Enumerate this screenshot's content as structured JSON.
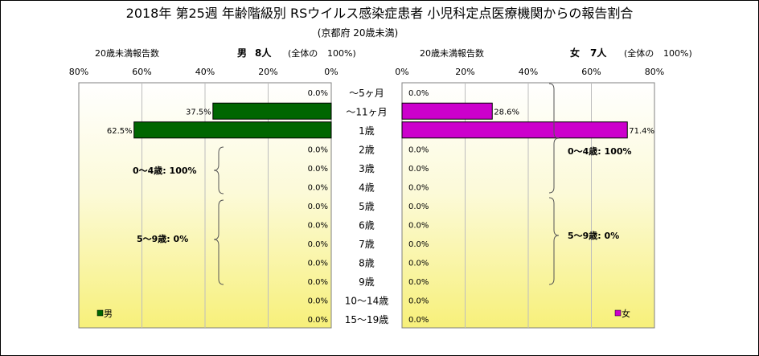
{
  "chart_data": {
    "type": "bar",
    "title": "2018年 第25週 年齢階級別 RSウイルス感染症患者 小児科定点医療機関からの報告割合",
    "subtitle": "(京都府 20歳未満)",
    "categories": [
      "～5ヶ月",
      "～11ヶ月",
      "1歳",
      "2歳",
      "3歳",
      "4歳",
      "5歳",
      "6歳",
      "7歳",
      "8歳",
      "9歳",
      "10～14歳",
      "15～19歳"
    ],
    "xlim": [
      0,
      80
    ],
    "ticks": [
      "80%",
      "60%",
      "40%",
      "20%",
      "0%"
    ],
    "ticks_right": [
      "0%",
      "20%",
      "40%",
      "60%",
      "80%"
    ],
    "grid": true,
    "series": [
      {
        "name": "男",
        "side": "left",
        "color": "#006600",
        "header_left": "20歳未満報告数",
        "header_label": "男",
        "header_count": "8人",
        "header_total": "(全体の",
        "header_total_pct": "100%)",
        "values": [
          0.0,
          37.5,
          62.5,
          0.0,
          0.0,
          0.0,
          0.0,
          0.0,
          0.0,
          0.0,
          0.0,
          0.0,
          0.0
        ],
        "labels": [
          "0.0%",
          "37.5%",
          "62.5%",
          "0.0%",
          "0.0%",
          "0.0%",
          "0.0%",
          "0.0%",
          "0.0%",
          "0.0%",
          "0.0%",
          "0.0%",
          "0.0%"
        ],
        "groups": [
          "0～4歳: 100%",
          "5～9歳: 0%"
        ]
      },
      {
        "name": "女",
        "side": "right",
        "color": "#cc00cc",
        "header_left": "20歳未満報告数",
        "header_label": "女",
        "header_count": "7人",
        "header_total": "(全体の",
        "header_total_pct": "100%)",
        "values": [
          0.0,
          28.6,
          71.4,
          0.0,
          0.0,
          0.0,
          0.0,
          0.0,
          0.0,
          0.0,
          0.0,
          0.0,
          0.0
        ],
        "labels": [
          "0.0%",
          "28.6%",
          "71.4%",
          "0.0%",
          "0.0%",
          "0.0%",
          "0.0%",
          "0.0%",
          "0.0%",
          "0.0%",
          "0.0%",
          "0.0%",
          "0.0%"
        ],
        "groups": [
          "0～4歳: 100%",
          "5～9歳: 0%"
        ]
      }
    ]
  }
}
